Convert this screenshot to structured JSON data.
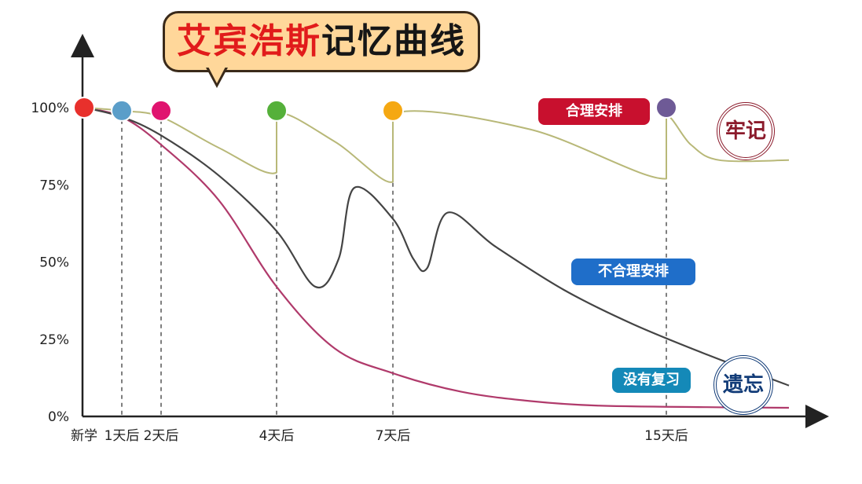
{
  "title": {
    "part_red": "艾宾浩斯",
    "part_black": "记忆曲线"
  },
  "chart_data": {
    "type": "line",
    "title": "艾宾浩斯记忆曲线",
    "y_ticks": [
      "100%",
      "75%",
      "50%",
      "25%",
      "0%"
    ],
    "x_ticks": [
      "新学",
      "1天后",
      "2天后",
      "4天后",
      "7天后",
      "15天后"
    ],
    "x_tick_days": [
      0,
      1,
      2,
      4,
      7,
      15
    ],
    "ylim": [
      0,
      100
    ],
    "series": [
      {
        "name": "合理安排",
        "color": "#b8b878",
        "points": [
          [
            0,
            100
          ],
          [
            1,
            99
          ],
          [
            2,
            97
          ],
          [
            3,
            87
          ],
          [
            4,
            79
          ],
          [
            4,
            98
          ],
          [
            5.5,
            89
          ],
          [
            7,
            76
          ],
          [
            7,
            98
          ],
          [
            11,
            93
          ],
          [
            15,
            77
          ],
          [
            15,
            97
          ],
          [
            15.6,
            88
          ],
          [
            16.3,
            83
          ],
          [
            18,
            83
          ]
        ]
      },
      {
        "name": "不合理安排",
        "color": "#444444",
        "points": [
          [
            0,
            100
          ],
          [
            1,
            97
          ],
          [
            2,
            91
          ],
          [
            3,
            78
          ],
          [
            4,
            60
          ],
          [
            5,
            42
          ],
          [
            5.6,
            51
          ],
          [
            6,
            74
          ],
          [
            7,
            64
          ],
          [
            7.6,
            51
          ],
          [
            8,
            48
          ],
          [
            8.6,
            66
          ],
          [
            10,
            55
          ],
          [
            12,
            41
          ],
          [
            14,
            30
          ],
          [
            16,
            20
          ],
          [
            18,
            10
          ]
        ]
      },
      {
        "name": "没有复习",
        "color": "#b03a6b",
        "points": [
          [
            0,
            100
          ],
          [
            1,
            97
          ],
          [
            2,
            88
          ],
          [
            3,
            70
          ],
          [
            4,
            42
          ],
          [
            5.5,
            22
          ],
          [
            7,
            14
          ],
          [
            9,
            8
          ],
          [
            11,
            5
          ],
          [
            13,
            3.5
          ],
          [
            16,
            3
          ],
          [
            18,
            2.8
          ]
        ]
      }
    ],
    "review_markers": [
      {
        "day": 0,
        "value": 100,
        "color": "#e8302c"
      },
      {
        "day": 1,
        "value": 99,
        "color": "#5b9ec9"
      },
      {
        "day": 2,
        "value": 99,
        "color": "#e0146f"
      },
      {
        "day": 4,
        "value": 99,
        "color": "#55b03a"
      },
      {
        "day": 7,
        "value": 99,
        "color": "#f5a812"
      },
      {
        "day": 15,
        "value": 100,
        "color": "#6e5a96"
      }
    ]
  },
  "labels": {
    "reasonable": "合理安排",
    "unreasonable": "不合理安排",
    "no_review": "没有复习",
    "remember": "牢记",
    "forget": "遗忘"
  }
}
